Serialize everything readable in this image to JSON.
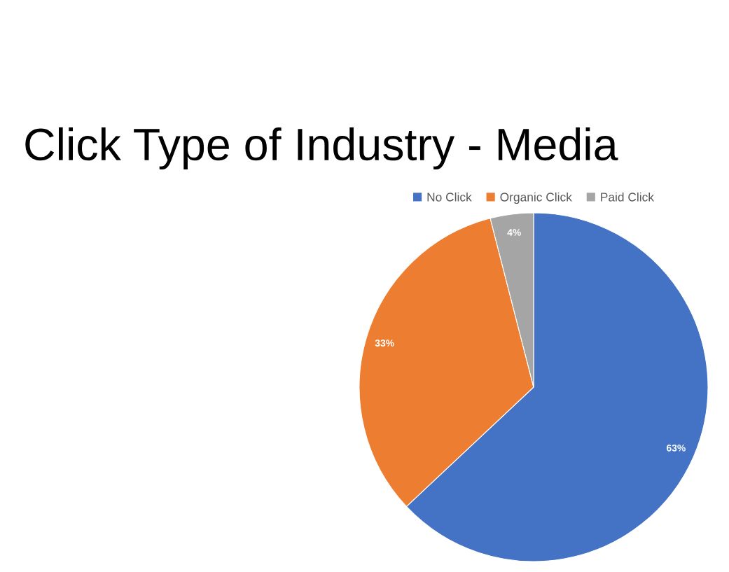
{
  "chart_data": {
    "type": "pie",
    "title": "Click Type of Industry - Media",
    "categories": [
      "No Click",
      "Organic Click",
      "Paid Click"
    ],
    "values": [
      63,
      33,
      4
    ],
    "colors": [
      "#4472c4",
      "#ed7d31",
      "#a5a5a5"
    ],
    "value_labels": [
      "63%",
      "33%",
      "4%"
    ],
    "legend": "top"
  }
}
